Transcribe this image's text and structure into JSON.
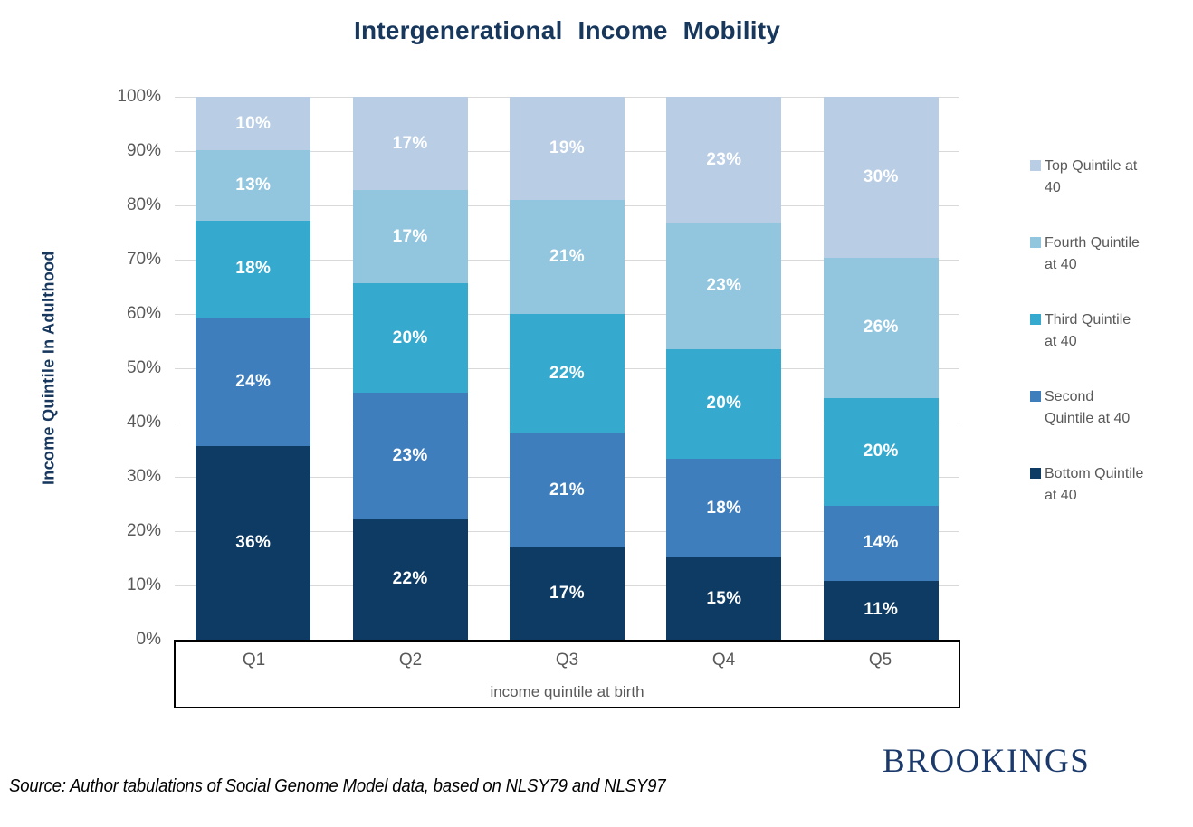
{
  "chart_data": {
    "type": "bar",
    "stacked": true,
    "title": "Intergenerational Income Mobility",
    "xlabel": "income quintile at birth",
    "ylabel": "Income Quintile In Adulthood",
    "categories": [
      "Q1",
      "Q2",
      "Q3",
      "Q4",
      "Q5"
    ],
    "series": [
      {
        "name": "Bottom Quintile at 40",
        "color": "#0E3B64",
        "values": [
          36,
          22,
          17,
          15,
          11
        ]
      },
      {
        "name": "Second Quintile at 40",
        "color": "#3F7EBD",
        "values": [
          24,
          23,
          21,
          18,
          14
        ]
      },
      {
        "name": "Third Quintile at 40",
        "color": "#36A9CE",
        "values": [
          18,
          20,
          22,
          20,
          20
        ]
      },
      {
        "name": "Fourth Quintile at 40",
        "color": "#92C5DE",
        "values": [
          13,
          17,
          21,
          23,
          26
        ]
      },
      {
        "name": "Top Quintile at 40",
        "color": "#B9CDE5",
        "values": [
          10,
          17,
          19,
          23,
          30
        ]
      }
    ],
    "value_suffix": "%",
    "ylim": [
      0,
      100
    ],
    "yticks_percent": [
      0,
      10,
      20,
      30,
      40,
      50,
      60,
      70,
      80,
      90,
      100
    ],
    "grid": true,
    "legend_position": "right"
  },
  "legend": {
    "items": [
      {
        "label": "Top Quintile at 40",
        "lines": [
          "Top Quintile at",
          "40"
        ],
        "color": "#B9CDE5"
      },
      {
        "label": "Fourth Quintile at 40",
        "lines": [
          "Fourth Quintile",
          "at 40"
        ],
        "color": "#92C5DE"
      },
      {
        "label": "Third Quintile at 40",
        "lines": [
          "Third Quintile",
          "at 40"
        ],
        "color": "#36A9CE"
      },
      {
        "label": "Second Quintile at 40",
        "lines": [
          "Second",
          "Quintile at 40"
        ],
        "color": "#3F7EBD"
      },
      {
        "label": "Bottom Quintile at 40",
        "lines": [
          "Bottom Quintile",
          "at 40"
        ],
        "color": "#0E3B64"
      }
    ]
  },
  "footer": {
    "source": "Source: Author tabulations of Social Genome Model data, based on NLSY79 and NLSY97",
    "logo": "BROOKINGS"
  },
  "colors": {
    "title_navy": "#17375D",
    "axis_text_gray": "#595959",
    "gridline_gray": "#D9D9D9",
    "axis_line_black": "#000000",
    "logo_navy": "#1B3A6B",
    "data_label_white": "#FFFFFF"
  }
}
